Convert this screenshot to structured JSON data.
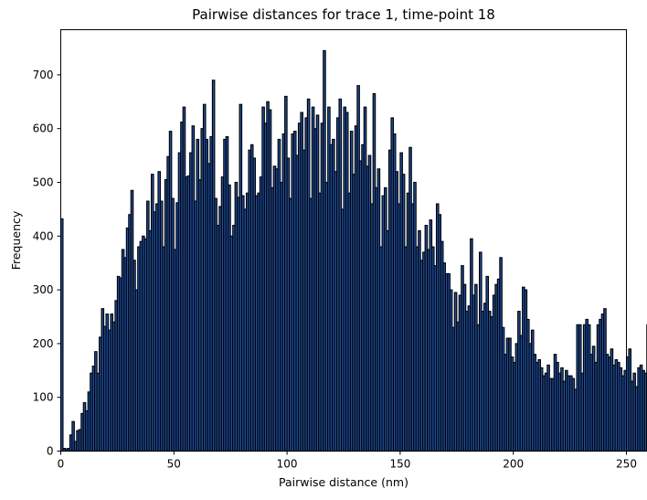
{
  "chart_data": {
    "type": "bar",
    "title": "Pairwise distances for trace 1, time-point 18",
    "xlabel": "Pairwise distance (nm)",
    "ylabel": "Frequency",
    "xlim": [
      0,
      250
    ],
    "ylim": [
      0,
      784
    ],
    "xticks": [
      0,
      50,
      100,
      150,
      200,
      250
    ],
    "yticks": [
      0,
      100,
      200,
      300,
      400,
      500,
      600,
      700
    ],
    "grid": false,
    "bin_width": 1,
    "bin_start": 0,
    "bar_color": "#1f4e9e",
    "edge_color": "#000000",
    "values": [
      432,
      5,
      4,
      5,
      30,
      55,
      18,
      38,
      40,
      70,
      90,
      75,
      110,
      145,
      158,
      185,
      145,
      212,
      265,
      232,
      255,
      225,
      255,
      240,
      280,
      325,
      322,
      375,
      360,
      415,
      440,
      485,
      355,
      300,
      380,
      390,
      400,
      395,
      465,
      410,
      515,
      445,
      460,
      520,
      465,
      380,
      505,
      548,
      595,
      470,
      375,
      462,
      555,
      612,
      640,
      510,
      512,
      555,
      605,
      465,
      580,
      505,
      600,
      645,
      580,
      535,
      585,
      690,
      470,
      420,
      455,
      510,
      580,
      585,
      495,
      400,
      420,
      500,
      472,
      645,
      475,
      450,
      480,
      560,
      570,
      545,
      475,
      480,
      510,
      640,
      610,
      650,
      635,
      490,
      530,
      525,
      580,
      500,
      590,
      660,
      545,
      470,
      590,
      595,
      550,
      610,
      630,
      560,
      620,
      655,
      470,
      640,
      600,
      625,
      480,
      610,
      745,
      500,
      640,
      570,
      580,
      520,
      620,
      655,
      450,
      640,
      630,
      480,
      595,
      515,
      605,
      680,
      540,
      570,
      640,
      530,
      550,
      460,
      665,
      490,
      525,
      380,
      475,
      490,
      410,
      560,
      620,
      590,
      520,
      460,
      555,
      515,
      380,
      480,
      565,
      460,
      500,
      380,
      410,
      355,
      370,
      420,
      375,
      430,
      380,
      345,
      460,
      440,
      390,
      350,
      330,
      330,
      300,
      230,
      295,
      240,
      290,
      345,
      310,
      260,
      270,
      395,
      290,
      310,
      235,
      370,
      260,
      275,
      325,
      260,
      250,
      290,
      310,
      320,
      360,
      230,
      180,
      210,
      210,
      175,
      165,
      200,
      260,
      215,
      305,
      300,
      245,
      200,
      225,
      180,
      165,
      170,
      155,
      140,
      145,
      160,
      135,
      135,
      180,
      165,
      145,
      155,
      130,
      150,
      140,
      140,
      135,
      115,
      235,
      235,
      145,
      235,
      245,
      235,
      180,
      195,
      165,
      235,
      245,
      255,
      265,
      180,
      175,
      190,
      160,
      170,
      165,
      155,
      140,
      150,
      175,
      190,
      130,
      145,
      120,
      155,
      160,
      150,
      145,
      235
    ]
  }
}
